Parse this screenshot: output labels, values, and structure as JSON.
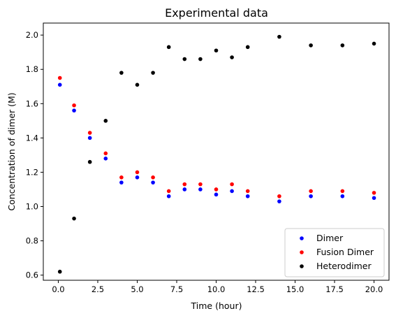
{
  "chart_data": {
    "type": "scatter",
    "title": "Experimental data",
    "xlabel": "Time (hour)",
    "ylabel": "Concentration of dimer (M)",
    "xlim": [
      -0.95,
      20.95
    ],
    "ylim": [
      0.57,
      2.07
    ],
    "xticks": [
      0.0,
      2.5,
      5.0,
      7.5,
      10.0,
      12.5,
      15.0,
      17.5,
      20.0
    ],
    "xtick_labels": [
      "0.0",
      "2.5",
      "5.0",
      "7.5",
      "10.0",
      "12.5",
      "15.0",
      "17.5",
      "20.0"
    ],
    "yticks": [
      0.6,
      0.8,
      1.0,
      1.2,
      1.4,
      1.6,
      1.8,
      2.0
    ],
    "ytick_labels": [
      "0.6",
      "0.8",
      "1.0",
      "1.2",
      "1.4",
      "1.6",
      "1.8",
      "2.0"
    ],
    "grid": false,
    "legend_position": "lower-right",
    "series": [
      {
        "name": "Dimer",
        "color": "#0000ff",
        "points": [
          [
            0.1,
            1.71
          ],
          [
            1,
            1.56
          ],
          [
            2,
            1.4
          ],
          [
            3,
            1.28
          ],
          [
            4,
            1.14
          ],
          [
            5,
            1.17
          ],
          [
            6,
            1.14
          ],
          [
            7,
            1.06
          ],
          [
            8,
            1.1
          ],
          [
            9,
            1.1
          ],
          [
            10,
            1.07
          ],
          [
            11,
            1.09
          ],
          [
            12,
            1.06
          ],
          [
            14,
            1.03
          ],
          [
            16,
            1.06
          ],
          [
            18,
            1.06
          ],
          [
            20,
            1.05
          ]
        ]
      },
      {
        "name": "Fusion Dimer",
        "color": "#ff0000",
        "points": [
          [
            0.1,
            1.75
          ],
          [
            1,
            1.59
          ],
          [
            2,
            1.43
          ],
          [
            3,
            1.31
          ],
          [
            4,
            1.17
          ],
          [
            5,
            1.2
          ],
          [
            6,
            1.17
          ],
          [
            7,
            1.09
          ],
          [
            8,
            1.13
          ],
          [
            9,
            1.13
          ],
          [
            10,
            1.1
          ],
          [
            11,
            1.13
          ],
          [
            12,
            1.09
          ],
          [
            14,
            1.06
          ],
          [
            16,
            1.09
          ],
          [
            18,
            1.09
          ],
          [
            20,
            1.08
          ]
        ]
      },
      {
        "name": "Heterodimer",
        "color": "#000000",
        "points": [
          [
            0.1,
            0.62
          ],
          [
            1,
            0.93
          ],
          [
            2,
            1.26
          ],
          [
            3,
            1.5
          ],
          [
            4,
            1.78
          ],
          [
            5,
            1.71
          ],
          [
            6,
            1.78
          ],
          [
            7,
            1.93
          ],
          [
            8,
            1.86
          ],
          [
            9,
            1.86
          ],
          [
            10,
            1.91
          ],
          [
            11,
            1.87
          ],
          [
            12,
            1.93
          ],
          [
            14,
            1.99
          ],
          [
            16,
            1.94
          ],
          [
            18,
            1.94
          ],
          [
            20,
            1.95
          ]
        ]
      }
    ]
  }
}
